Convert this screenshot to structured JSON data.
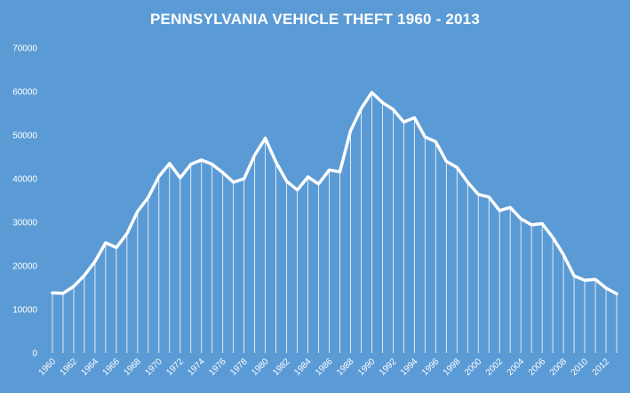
{
  "chart_data": {
    "type": "line",
    "title": "PENNSYLVANIA VEHICLE THEFT 1960 - 2013",
    "xlabel": "",
    "ylabel": "",
    "ylim": [
      0,
      70000
    ],
    "yticks": [
      0,
      10000,
      20000,
      30000,
      40000,
      50000,
      60000,
      70000
    ],
    "xtick_labels": [
      "1960",
      "1962",
      "1964",
      "1966",
      "1968",
      "1970",
      "1972",
      "1974",
      "1976",
      "1978",
      "1980",
      "1982",
      "1984",
      "1986",
      "1988",
      "1990",
      "1992",
      "1994",
      "1996",
      "1998",
      "2000",
      "2002",
      "2004",
      "2006",
      "2008",
      "2010",
      "2012"
    ],
    "grid": false,
    "legend": "none",
    "colors": {
      "background": "#5b9bd5",
      "line": "#ffffff",
      "text": "#ffffff"
    },
    "x": [
      1960,
      1961,
      1962,
      1963,
      1964,
      1965,
      1966,
      1967,
      1968,
      1969,
      1970,
      1971,
      1972,
      1973,
      1974,
      1975,
      1976,
      1977,
      1978,
      1979,
      1980,
      1981,
      1982,
      1983,
      1984,
      1985,
      1986,
      1987,
      1988,
      1989,
      1990,
      1991,
      1992,
      1993,
      1994,
      1995,
      1996,
      1997,
      1998,
      1999,
      2000,
      2001,
      2002,
      2003,
      2004,
      2005,
      2006,
      2007,
      2008,
      2009,
      2010,
      2011,
      2012,
      2013
    ],
    "series": [
      {
        "values": [
          13800,
          13700,
          15300,
          17800,
          21000,
          25300,
          24200,
          27400,
          32500,
          35700,
          40500,
          43500,
          40200,
          43300,
          44300,
          43300,
          41400,
          39200,
          40000,
          45400,
          49300,
          43800,
          39400,
          37400,
          40400,
          38800,
          42000,
          41600,
          51000,
          56100,
          59800,
          57500,
          55900,
          53000,
          54000,
          49600,
          48500,
          44000,
          42600,
          39200,
          36400,
          35800,
          32700,
          33400,
          30800,
          29400,
          29700,
          26500,
          22600,
          17700,
          16700,
          16900,
          14900,
          13600
        ]
      }
    ]
  }
}
